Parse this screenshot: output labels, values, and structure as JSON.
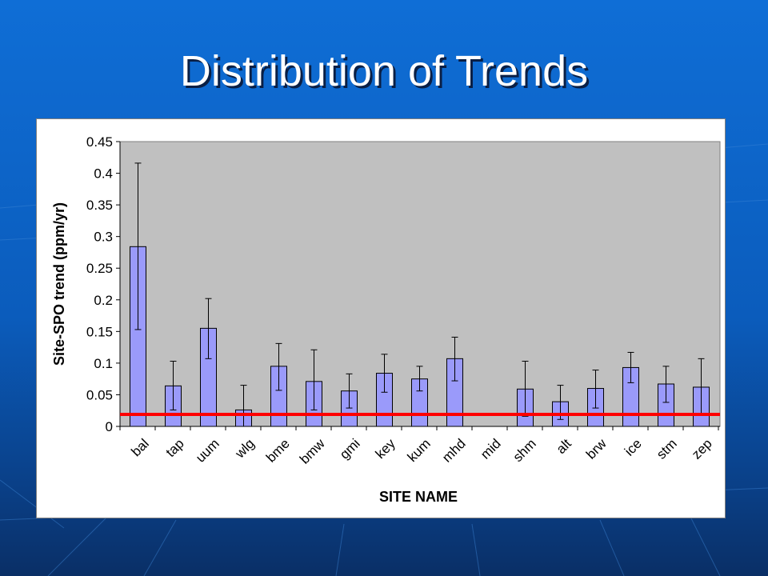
{
  "slide": {
    "title": "Distribution of Trends"
  },
  "colors": {
    "bar_fill": "#9a9afa",
    "bar_stroke": "#000000",
    "plot_bg": "#c0c0c0",
    "reference_line": "#ff0000"
  },
  "chart_data": {
    "type": "bar",
    "title": "",
    "xlabel": "SITE NAME",
    "ylabel": "Site-SPO trend (ppm/yr)",
    "ylim": [
      0,
      0.45
    ],
    "yticks": [
      0,
      0.05,
      0.1,
      0.15,
      0.2,
      0.25,
      0.3,
      0.35,
      0.4,
      0.45
    ],
    "ytick_labels": [
      "0",
      "0.05",
      "0.1",
      "0.15",
      "0.2",
      "0.25",
      "0.3",
      "0.35",
      "0.4",
      "0.45"
    ],
    "categories": [
      "bal",
      "tap",
      "uum",
      "wlg",
      "bme",
      "bmw",
      "gmi",
      "key",
      "kum",
      "mhd",
      "mid",
      "shm",
      "alt",
      "brw",
      "ice",
      "stm",
      "zep"
    ],
    "values": [
      0.284,
      0.064,
      0.155,
      0.026,
      0.095,
      0.071,
      0.056,
      0.084,
      0.075,
      0.107,
      null,
      0.059,
      0.039,
      0.06,
      0.093,
      0.067,
      0.062
    ],
    "error_low": [
      0.153,
      0.026,
      0.107,
      0.0,
      0.057,
      0.026,
      0.029,
      0.054,
      0.056,
      0.072,
      null,
      0.016,
      0.011,
      0.029,
      0.069,
      0.038,
      0.018
    ],
    "error_high": [
      0.416,
      0.103,
      0.202,
      0.065,
      0.131,
      0.121,
      0.083,
      0.114,
      0.095,
      0.141,
      null,
      0.103,
      0.065,
      0.089,
      0.117,
      0.095,
      0.107
    ],
    "reference_line": 0.019,
    "grid": false,
    "legend": "none"
  }
}
